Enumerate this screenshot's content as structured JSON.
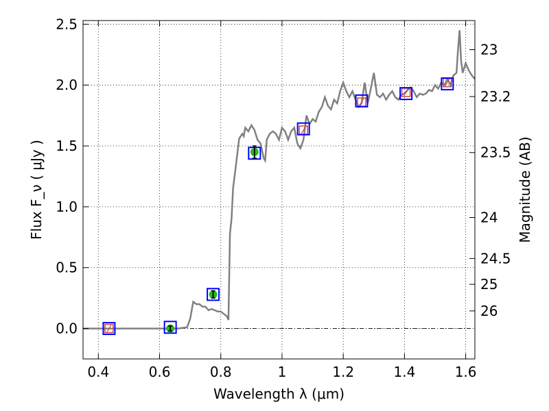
{
  "chart_data": {
    "type": "scatter",
    "xlabel": "Wavelength  λ (μm)",
    "ylabel": "Flux  F_ν  ( μJy )",
    "ylabel_right": "Magnitude (AB)",
    "xlim": [
      0.35,
      1.63
    ],
    "ylim": [
      -0.25,
      2.53
    ],
    "grid": true,
    "x_ticks": [
      0.4,
      0.6,
      0.8,
      1.0,
      1.2,
      1.4,
      1.6
    ],
    "x_tick_labels": [
      "0.4",
      "0.6",
      "0.8",
      "1",
      "1.2",
      "1.4",
      "1.6"
    ],
    "y_ticks": [
      0.0,
      0.5,
      1.0,
      1.5,
      2.0,
      2.5
    ],
    "y_tick_labels": [
      "0.0",
      "0.5",
      "1.0",
      "1.5",
      "2.0",
      "2.5"
    ],
    "right_ticks": [
      {
        "label": "23",
        "mag": 23.0
      },
      {
        "label": "23.2",
        "mag": 23.2
      },
      {
        "label": "23.5",
        "mag": 23.5
      },
      {
        "label": "24",
        "mag": 24.0
      },
      {
        "label": "24.5",
        "mag": 24.5
      },
      {
        "label": "25",
        "mag": 25.0
      },
      {
        "label": "26",
        "mag": 26.0
      }
    ],
    "model_spectrum": {
      "color": "#808080",
      "x": [
        0.35,
        0.6,
        0.66,
        0.69,
        0.7,
        0.71,
        0.72,
        0.73,
        0.74,
        0.75,
        0.76,
        0.77,
        0.78,
        0.79,
        0.8,
        0.81,
        0.82,
        0.825,
        0.83,
        0.835,
        0.84,
        0.85,
        0.86,
        0.87,
        0.875,
        0.88,
        0.89,
        0.9,
        0.91,
        0.92,
        0.93,
        0.94,
        0.945,
        0.95,
        0.96,
        0.97,
        0.98,
        0.99,
        1.0,
        1.01,
        1.02,
        1.03,
        1.04,
        1.05,
        1.06,
        1.07,
        1.08,
        1.09,
        1.1,
        1.11,
        1.12,
        1.13,
        1.14,
        1.15,
        1.16,
        1.17,
        1.18,
        1.19,
        1.2,
        1.21,
        1.22,
        1.23,
        1.24,
        1.25,
        1.26,
        1.27,
        1.28,
        1.29,
        1.3,
        1.31,
        1.32,
        1.33,
        1.34,
        1.35,
        1.36,
        1.37,
        1.38,
        1.39,
        1.4,
        1.41,
        1.42,
        1.43,
        1.44,
        1.45,
        1.46,
        1.47,
        1.48,
        1.49,
        1.5,
        1.51,
        1.52,
        1.53,
        1.54,
        1.55,
        1.56,
        1.57,
        1.575,
        1.58,
        1.585,
        1.59,
        1.6,
        1.61,
        1.62,
        1.63
      ],
      "y": [
        0.0,
        0.0,
        0.0,
        0.01,
        0.08,
        0.22,
        0.2,
        0.2,
        0.18,
        0.18,
        0.15,
        0.16,
        0.15,
        0.14,
        0.14,
        0.12,
        0.1,
        0.07,
        0.78,
        0.9,
        1.15,
        1.35,
        1.56,
        1.6,
        1.58,
        1.65,
        1.62,
        1.67,
        1.63,
        1.55,
        1.52,
        1.4,
        1.38,
        1.55,
        1.6,
        1.62,
        1.6,
        1.55,
        1.65,
        1.62,
        1.55,
        1.62,
        1.65,
        1.52,
        1.48,
        1.55,
        1.75,
        1.68,
        1.72,
        1.7,
        1.78,
        1.82,
        1.9,
        1.83,
        1.8,
        1.88,
        1.85,
        1.95,
        2.02,
        1.95,
        1.9,
        1.95,
        1.88,
        1.82,
        1.85,
        2.02,
        1.85,
        1.97,
        2.1,
        1.92,
        1.9,
        1.93,
        1.88,
        1.92,
        1.95,
        1.9,
        1.88,
        1.92,
        1.93,
        1.96,
        1.98,
        1.95,
        1.9,
        1.93,
        1.92,
        1.93,
        1.96,
        1.95,
        2.0,
        1.97,
        2.02,
        2.0,
        2.05,
        2.0,
        2.08,
        2.1,
        2.3,
        2.45,
        2.2,
        2.1,
        2.18,
        2.12,
        2.08,
        2.05
      ]
    },
    "photometry": [
      {
        "x": 0.435,
        "y": 0.0
      },
      {
        "x": 0.635,
        "y": 0.01
      },
      {
        "x": 0.775,
        "y": 0.28
      },
      {
        "x": 0.91,
        "y": 1.44
      },
      {
        "x": 1.07,
        "y": 1.64
      },
      {
        "x": 1.26,
        "y": 1.87
      },
      {
        "x": 1.405,
        "y": 1.93
      },
      {
        "x": 1.54,
        "y": 2.01
      }
    ],
    "detections": [
      {
        "x": 0.635,
        "y": 0.0,
        "yerr": 0.02
      },
      {
        "x": 0.775,
        "y": 0.28,
        "yerr": 0.03
      },
      {
        "x": 0.91,
        "y": 1.45,
        "yerr": 0.05
      }
    ],
    "model_points": [
      {
        "x": 0.435,
        "y": 0.0
      },
      {
        "x": 1.07,
        "y": 1.63
      },
      {
        "x": 1.26,
        "y": 1.86
      },
      {
        "x": 1.405,
        "y": 1.94
      },
      {
        "x": 1.54,
        "y": 2.02
      }
    ],
    "colors": {
      "spectrum": "#808080",
      "observed_box": "#0000ff",
      "model_box": "#cc4444",
      "detection": "#22bb22",
      "grid": "#000000"
    }
  }
}
